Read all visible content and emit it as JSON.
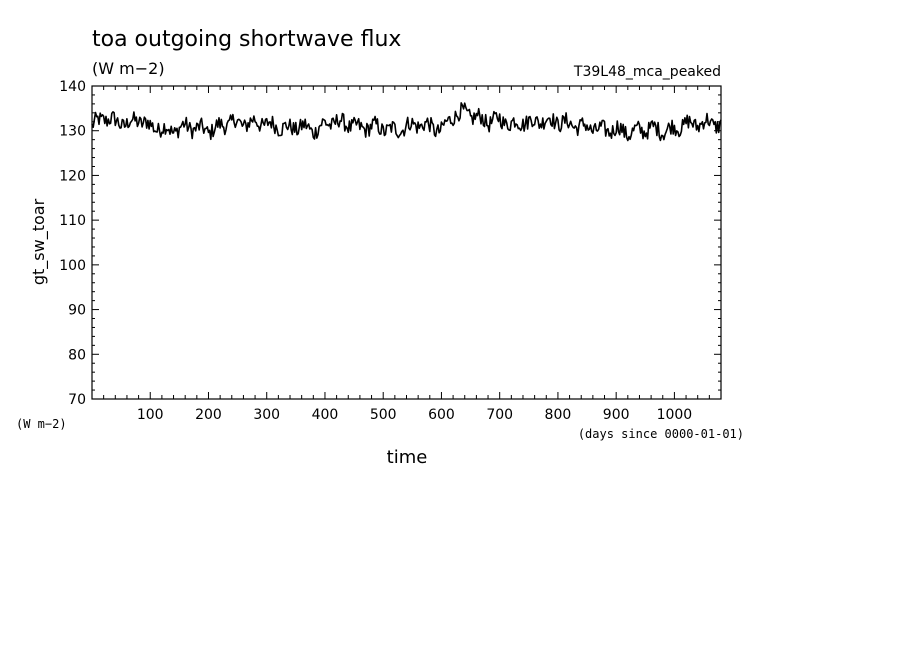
{
  "chart_data": {
    "type": "line",
    "title": "toa outgoing shortwave flux",
    "subtitle": "(W m−2)",
    "run_label": "T39L48_mca_peaked",
    "ylabel": "gt_sw_toar",
    "yunits": "(W m−2)",
    "xlabel": "time",
    "xunits": "(days since 0000-01-01)",
    "xlim": [
      0,
      1080
    ],
    "ylim": [
      70,
      140
    ],
    "x_ticks": [
      100,
      200,
      300,
      400,
      500,
      600,
      700,
      800,
      900,
      1000
    ],
    "y_ticks": [
      70,
      80,
      90,
      100,
      110,
      120,
      130,
      140
    ],
    "grid": false,
    "series": [
      {
        "color": "#000000",
        "x": [
          0,
          20,
          40,
          60,
          80,
          100,
          120,
          140,
          160,
          180,
          200,
          220,
          240,
          260,
          280,
          300,
          320,
          340,
          360,
          380,
          400,
          420,
          440,
          460,
          480,
          500,
          520,
          540,
          560,
          580,
          600,
          620,
          640,
          660,
          680,
          700,
          720,
          740,
          760,
          780,
          800,
          820,
          840,
          860,
          880,
          900,
          920,
          940,
          960,
          980,
          1000,
          1020,
          1040,
          1060,
          1080
        ],
        "values": [
          131.0,
          133.0,
          132.0,
          131.5,
          132.5,
          131.0,
          130.5,
          130.0,
          131.0,
          130.5,
          130.0,
          131.0,
          132.0,
          131.5,
          132.0,
          131.5,
          131.0,
          130.5,
          131.0,
          130.0,
          131.5,
          132.0,
          131.5,
          130.5,
          131.0,
          130.5,
          130.0,
          131.0,
          131.5,
          131.0,
          130.0,
          133.5,
          134.0,
          133.0,
          132.0,
          132.5,
          131.5,
          132.0,
          132.0,
          132.5,
          132.0,
          131.5,
          131.0,
          130.5,
          130.0,
          130.5,
          129.5,
          130.0,
          130.5,
          130.0,
          130.5,
          131.5,
          131.5,
          132.0,
          131.0
        ]
      }
    ]
  }
}
